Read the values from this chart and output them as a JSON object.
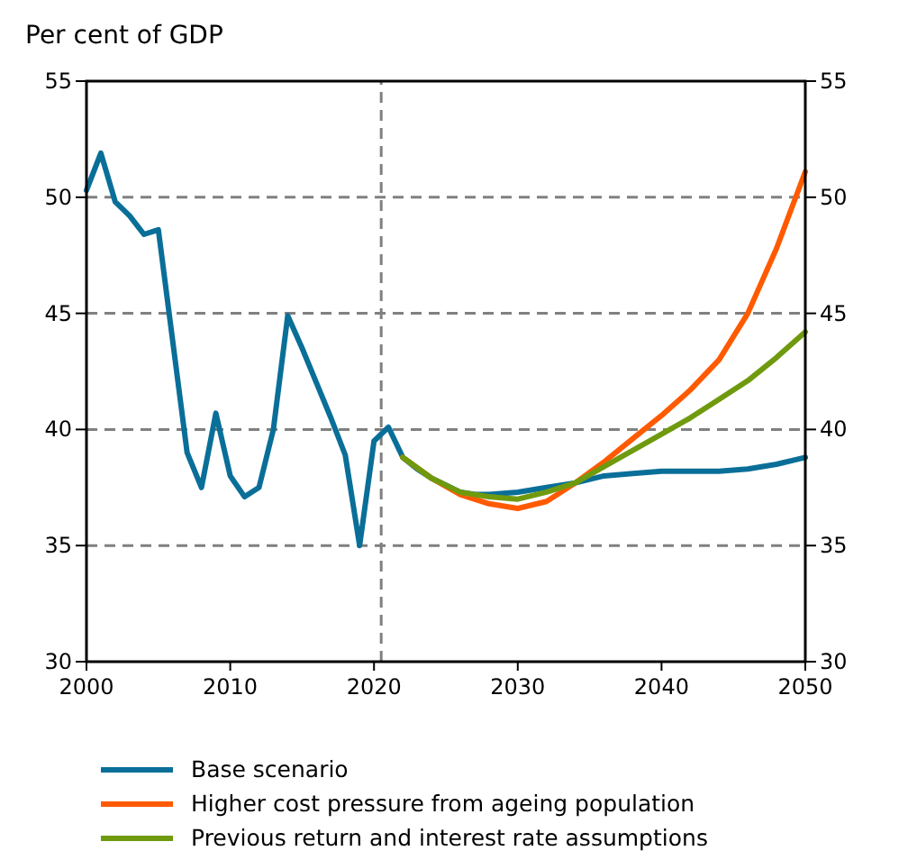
{
  "chart_data": {
    "type": "line",
    "ylabel": "Per cent of GDP",
    "xlim": [
      2000,
      2050
    ],
    "xticks": [
      2000,
      2010,
      2020,
      2030,
      2040,
      2050
    ],
    "ylim": [
      30,
      55
    ],
    "yticks": [
      30,
      35,
      40,
      45,
      50,
      55
    ],
    "y2lim": [
      30,
      55
    ],
    "y2ticks": [
      30,
      35,
      40,
      45,
      50,
      55
    ],
    "grid": "y",
    "legend": "bottom",
    "line_style": "solid",
    "marker": "none",
    "ref_lines": [
      {
        "axis": "x",
        "value": 2020.5,
        "color": "#808080",
        "line_style": "dashed"
      }
    ],
    "series": [
      {
        "name": "Base scenario",
        "color": "#0a6f98",
        "x": [
          2000,
          2001,
          2002,
          2003,
          2004,
          2005,
          2006,
          2007,
          2008,
          2009,
          2010,
          2011,
          2012,
          2013,
          2014,
          2015,
          2016,
          2017,
          2018,
          2019,
          2020,
          2021,
          2022,
          2023,
          2024,
          2025,
          2026,
          2027,
          2028,
          2030,
          2032,
          2034,
          2036,
          2038,
          2040,
          2044,
          2046,
          2048,
          2050
        ],
        "values": [
          50.3,
          51.9,
          49.8,
          49.2,
          48.4,
          48.6,
          43.8,
          39.0,
          37.5,
          40.7,
          38.0,
          37.1,
          37.5,
          40.0,
          44.9,
          43.5,
          42.0,
          40.5,
          38.9,
          35.0,
          39.5,
          40.1,
          38.8,
          38.3,
          37.9,
          37.6,
          37.3,
          37.2,
          37.2,
          37.3,
          37.5,
          37.7,
          38.0,
          38.1,
          38.2,
          38.2,
          38.3,
          38.5,
          38.8
        ]
      },
      {
        "name": "Higher cost pressure from ageing population",
        "color": "#ff5a00",
        "x": [
          2022,
          2024,
          2026,
          2028,
          2030,
          2032,
          2034,
          2036,
          2038,
          2040,
          2042,
          2044,
          2046,
          2048,
          2050
        ],
        "values": [
          38.8,
          37.9,
          37.2,
          36.8,
          36.6,
          36.9,
          37.7,
          38.6,
          39.6,
          40.6,
          41.7,
          43.0,
          45.0,
          47.8,
          51.1
        ]
      },
      {
        "name": "Previous return and interest rate assumptions",
        "color": "#6f9a0e",
        "x": [
          2022,
          2024,
          2026,
          2028,
          2030,
          2032,
          2034,
          2036,
          2038,
          2040,
          2042,
          2044,
          2046,
          2048,
          2050
        ],
        "values": [
          38.8,
          37.9,
          37.3,
          37.1,
          37.0,
          37.3,
          37.7,
          38.4,
          39.1,
          39.8,
          40.5,
          41.3,
          42.1,
          43.1,
          44.2
        ]
      }
    ]
  }
}
